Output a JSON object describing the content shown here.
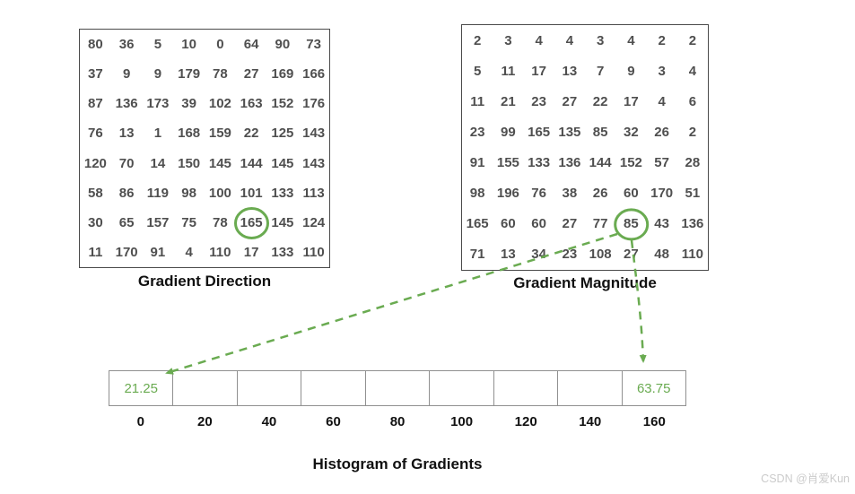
{
  "gradient_direction": {
    "label": "Gradient Direction",
    "rows": [
      [
        80,
        36,
        5,
        10,
        0,
        64,
        90,
        73
      ],
      [
        37,
        9,
        9,
        179,
        78,
        27,
        169,
        166
      ],
      [
        87,
        136,
        173,
        39,
        102,
        163,
        152,
        176
      ],
      [
        76,
        13,
        1,
        168,
        159,
        22,
        125,
        143
      ],
      [
        120,
        70,
        14,
        150,
        145,
        144,
        145,
        143
      ],
      [
        58,
        86,
        119,
        98,
        100,
        101,
        133,
        113
      ],
      [
        30,
        65,
        157,
        75,
        78,
        165,
        145,
        124
      ],
      [
        11,
        170,
        91,
        4,
        110,
        17,
        133,
        110
      ]
    ],
    "circled": {
      "row": 6,
      "col": 5,
      "value": 165
    }
  },
  "gradient_magnitude": {
    "label": "Gradient Magnitude",
    "rows": [
      [
        2,
        3,
        4,
        4,
        3,
        4,
        2,
        2
      ],
      [
        5,
        11,
        17,
        13,
        7,
        9,
        3,
        4
      ],
      [
        11,
        21,
        23,
        27,
        22,
        17,
        4,
        6
      ],
      [
        23,
        99,
        165,
        135,
        85,
        32,
        26,
        2
      ],
      [
        91,
        155,
        133,
        136,
        144,
        152,
        57,
        28
      ],
      [
        98,
        196,
        76,
        38,
        26,
        60,
        170,
        51
      ],
      [
        165,
        60,
        60,
        27,
        77,
        85,
        43,
        136
      ],
      [
        71,
        13,
        34,
        23,
        108,
        27,
        48,
        110
      ]
    ],
    "circled": {
      "row": 6,
      "col": 5,
      "value": 85
    }
  },
  "histogram": {
    "title": "Histogram of Gradients",
    "bin_labels": [
      "0",
      "20",
      "40",
      "60",
      "80",
      "100",
      "120",
      "140",
      "160"
    ],
    "cell_values": [
      "21.25",
      "",
      "",
      "",
      "",
      "",
      "",
      "",
      "63.75"
    ]
  },
  "colors": {
    "accent_green": "#6aab51",
    "matrix_text": "#4f4f4f",
    "matrix_border": "#4a4a4a",
    "histogram_border": "#909090",
    "caption_text": "#111111",
    "watermark_text": "#cbcbcb"
  },
  "watermark": {
    "text": "CSDN @肖爱Kun"
  }
}
